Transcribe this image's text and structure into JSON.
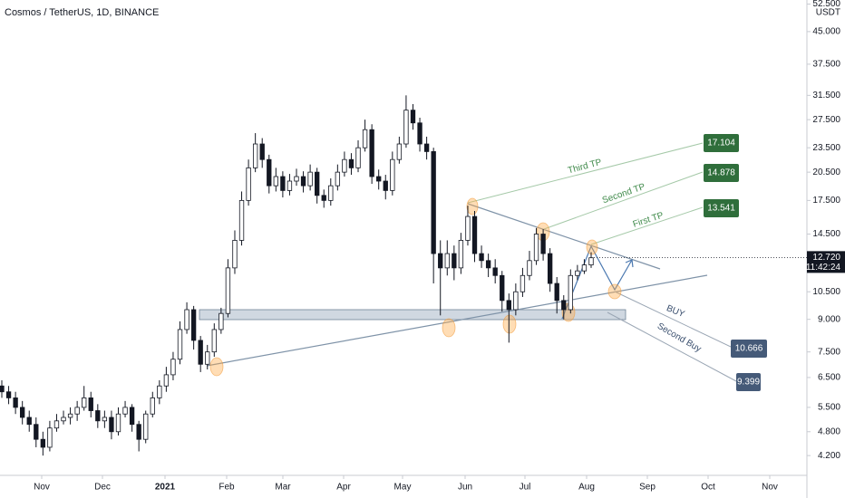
{
  "chart_data": {
    "type": "candlestick",
    "title": "Cosmos / TetherUS, 1D, BINANCE",
    "y_axis_label": "USDT",
    "log_scale": true,
    "grid": false,
    "up_color": "#ffffff",
    "down_color": "#131722",
    "ylim": [
      3.76,
      53.7
    ],
    "yticks": [
      {
        "value": 4.2,
        "label": "4.200"
      },
      {
        "value": 4.8,
        "label": "4.800"
      },
      {
        "value": 5.5,
        "label": "5.500"
      },
      {
        "value": 6.5,
        "label": "6.500"
      },
      {
        "value": 7.5,
        "label": "7.500"
      },
      {
        "value": 9,
        "label": "9.000"
      },
      {
        "value": 10.5,
        "label": "10.500"
      },
      {
        "value": 14.5,
        "label": "14.500"
      },
      {
        "value": 17.5,
        "label": "17.500"
      },
      {
        "value": 20.5,
        "label": "20.500"
      },
      {
        "value": 23.5,
        "label": "23.500"
      },
      {
        "value": 27.5,
        "label": "27.500"
      },
      {
        "value": 31.5,
        "label": "31.500"
      },
      {
        "value": 37.5,
        "label": "37.500"
      },
      {
        "value": 45,
        "label": "45.000"
      },
      {
        "value": 52.5,
        "label": "52.500"
      }
    ],
    "x_labels": [
      "Nov",
      "Dec",
      "2021",
      "Feb",
      "Mar",
      "Apr",
      "May",
      "Jun",
      "Jul",
      "Aug",
      "Sep",
      "Oct",
      "Nov"
    ],
    "open": [
      6.2,
      6.0,
      5.8,
      5.5,
      5.2,
      5.0,
      4.6,
      4.4,
      4.9,
      5.1,
      5.2,
      5.3,
      5.5,
      5.8,
      5.4,
      5.1,
      5.2,
      4.8,
      5.3,
      5.5,
      5.0,
      4.6,
      5.3,
      5.8,
      6.2,
      6.6,
      7.2,
      8.5,
      9.5,
      8.0,
      7.0,
      7.5,
      8.5,
      9.3,
      12,
      14,
      17.5,
      21,
      24,
      22,
      19,
      20,
      18.5,
      19.5,
      20,
      19,
      20.5,
      18,
      17.5,
      19,
      20.5,
      22,
      21,
      23.5,
      26,
      20,
      19.5,
      18.5,
      22,
      24,
      29,
      27,
      24,
      23,
      13,
      12,
      13,
      12,
      14,
      16,
      13,
      12.5,
      12,
      11.5,
      10,
      9.5,
      10.5,
      11.5,
      12.5,
      14.5,
      13,
      11,
      10,
      9.5,
      11.5,
      11.8,
      12.2
    ],
    "high": [
      6.4,
      6.2,
      6.0,
      5.7,
      5.4,
      5.2,
      4.8,
      5.1,
      5.3,
      5.4,
      5.5,
      5.7,
      6.2,
      6.0,
      5.6,
      5.4,
      5.4,
      5.5,
      5.7,
      5.6,
      5.1,
      5.4,
      6.0,
      6.4,
      6.9,
      7.5,
      8.9,
      9.9,
      9.7,
      8.2,
      7.8,
      8.8,
      9.6,
      12.6,
      14.8,
      18.4,
      22,
      25.5,
      24.8,
      22.6,
      21,
      20.6,
      20.3,
      20.9,
      20.6,
      21.4,
      21,
      18.6,
      19.8,
      21.4,
      23,
      22.8,
      24.5,
      27.5,
      26.8,
      20.8,
      20.2,
      23,
      25,
      31.5,
      30,
      27.8,
      25,
      23.5,
      14,
      14,
      13.6,
      14.6,
      17,
      16.5,
      13.6,
      13,
      12.6,
      11.8,
      10.4,
      11,
      12,
      13.2,
      15,
      14.9,
      13.4,
      11.4,
      10.3,
      11.9,
      12.2,
      12.6,
      13.1
    ],
    "low": [
      5.8,
      5.6,
      5.3,
      5.0,
      4.8,
      4.4,
      4.2,
      4.3,
      4.8,
      5.0,
      5.0,
      5.1,
      5.4,
      5.2,
      4.9,
      4.9,
      4.6,
      4.7,
      5.2,
      4.8,
      4.3,
      4.5,
      5.2,
      5.6,
      6.0,
      6.4,
      7.0,
      8.3,
      7.6,
      6.7,
      6.8,
      7.3,
      8.3,
      9.1,
      11.6,
      13.6,
      17,
      20.5,
      21,
      18.2,
      18.4,
      17.8,
      18,
      19,
      18.3,
      18.5,
      17.2,
      16.8,
      17,
      18.5,
      20,
      20.2,
      20.5,
      23,
      19.2,
      18.6,
      17.6,
      18,
      21.5,
      23.5,
      26,
      23,
      22,
      11,
      9.2,
      11.5,
      11.2,
      11.6,
      13.6,
      12.4,
      12,
      11.4,
      11,
      9.4,
      7.9,
      9.2,
      10.2,
      11.2,
      12.2,
      12.5,
      10.5,
      9.3,
      9.0,
      9.3,
      11.2,
      11.6,
      12.0
    ],
    "close": [
      6.0,
      5.8,
      5.5,
      5.2,
      5.0,
      4.6,
      4.4,
      4.9,
      5.1,
      5.2,
      5.3,
      5.5,
      5.8,
      5.4,
      5.1,
      5.2,
      4.8,
      5.3,
      5.5,
      5.0,
      4.6,
      5.3,
      5.8,
      6.2,
      6.6,
      7.2,
      8.5,
      9.5,
      8.0,
      7.0,
      7.5,
      8.5,
      9.3,
      12,
      14,
      17.5,
      21,
      24,
      22,
      19,
      20,
      18.5,
      19.5,
      20,
      19,
      20.5,
      18,
      17.5,
      19,
      20.5,
      22,
      21,
      23.5,
      26,
      20,
      19.5,
      18.5,
      22,
      24,
      29,
      27,
      24,
      23,
      13,
      12,
      13,
      12,
      14,
      16,
      13,
      12.5,
      12,
      11.5,
      10,
      9.5,
      10.5,
      11.5,
      12.5,
      14.5,
      13,
      11,
      10,
      9.5,
      11.5,
      11.8,
      12.2,
      12.7
    ],
    "current_price": {
      "value": 12.72,
      "label": "12.720"
    },
    "countdown": "11:42:24",
    "targets": [
      {
        "label": "Third TP",
        "value": 17.104
      },
      {
        "label": "Second TP",
        "value": 14.878
      },
      {
        "label": "First TP",
        "value": 13.541
      },
      {
        "label": "BUY",
        "value": 10.666
      },
      {
        "label": "Second Buy",
        "value": 9.399
      }
    ]
  }
}
